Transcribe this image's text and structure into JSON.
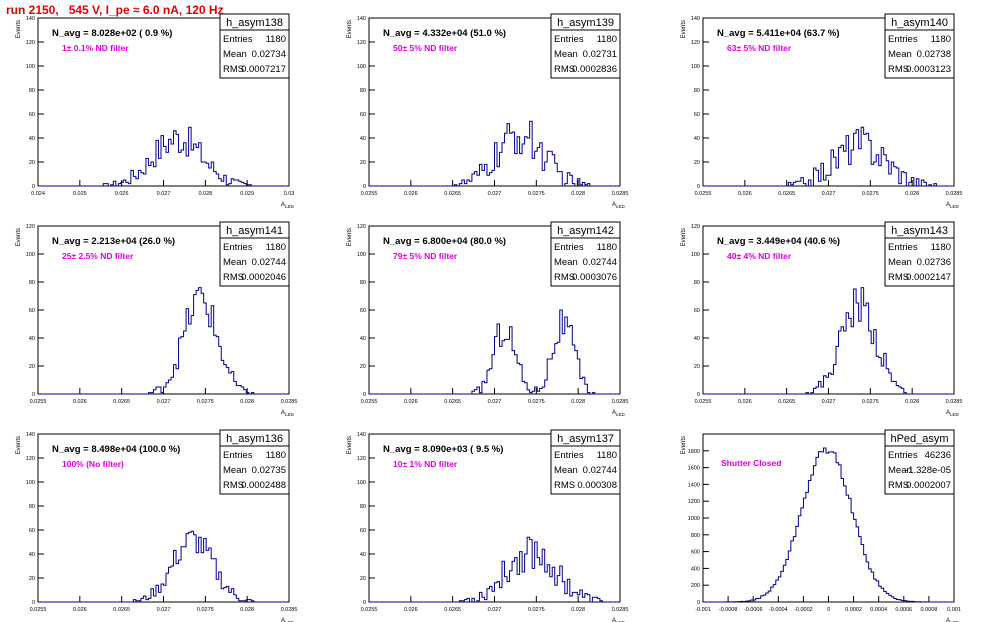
{
  "page_title": "run 2150,   545 V, I_pe ≈ 6.0 nA, 120 Hz",
  "axis_ylabel": "Events",
  "axis_xlabel": "A",
  "axis_xlabel_sub": "LED",
  "stats_labels": {
    "entries": "Entries",
    "mean": "Mean",
    "rms": "RMS"
  },
  "chart_data": [
    {
      "type": "bar",
      "name": "h_asym138",
      "navg": "N_avg = 8.028e+02 ( 0.9 %)",
      "filter": "1± 0.1% ND filter",
      "entries": "1180",
      "mean": "0.02734",
      "rms": "0.0007217",
      "xlim": [
        0.024,
        0.03
      ],
      "ylim": [
        0,
        140
      ],
      "xticks": [
        "0.024",
        "0.025",
        "0.026",
        "0.027",
        "0.028",
        "0.029",
        "0.03"
      ],
      "yticks": [
        "0",
        "20",
        "40",
        "60",
        "80",
        "100",
        "120",
        "140"
      ],
      "peaks": [
        {
          "mu": 0.02734,
          "sigma": 0.0006,
          "amp": 40
        }
      ],
      "noise": 7
    },
    {
      "type": "bar",
      "name": "h_asym139",
      "navg": "N_avg = 4.332e+04 (51.0 %)",
      "filter": "50± 5% ND filter",
      "entries": "1180",
      "mean": "0.02731",
      "rms": "0.0002836",
      "xlim": [
        0.0255,
        0.0285
      ],
      "ylim": [
        0,
        140
      ],
      "xticks": [
        "0.0255",
        "0.026",
        "0.0265",
        "0.027",
        "0.0275",
        "0.028",
        "0.0285"
      ],
      "yticks": [
        "0",
        "20",
        "40",
        "60",
        "80",
        "100",
        "120",
        "140"
      ],
      "peaks": [
        {
          "mu": 0.02731,
          "sigma": 0.00028,
          "amp": 42
        }
      ],
      "noise": 9
    },
    {
      "type": "bar",
      "name": "h_asym140",
      "navg": "N_avg = 5.411e+04 (63.7 %)",
      "filter": "63± 5% ND filter",
      "entries": "1180",
      "mean": "0.02738",
      "rms": "0.0003123",
      "xlim": [
        0.0255,
        0.0285
      ],
      "ylim": [
        0,
        140
      ],
      "xticks": [
        "0.0255",
        "0.026",
        "0.0265",
        "0.027",
        "0.0275",
        "0.028",
        "0.0285"
      ],
      "yticks": [
        "0",
        "20",
        "40",
        "60",
        "80",
        "100",
        "120",
        "140"
      ],
      "peaks": [
        {
          "mu": 0.02738,
          "sigma": 0.00031,
          "amp": 35
        }
      ],
      "noise": 8
    },
    {
      "type": "bar",
      "name": "h_asym141",
      "navg": "N_avg = 2.213e+04 (26.0 %)",
      "filter": "25± 2.5% ND filter",
      "entries": "1180",
      "mean": "0.02744",
      "rms": "0.0002046",
      "xlim": [
        0.0255,
        0.0285
      ],
      "ylim": [
        0,
        120
      ],
      "xticks": [
        "0.0255",
        "0.026",
        "0.0265",
        "0.027",
        "0.0275",
        "0.028",
        "0.0285"
      ],
      "yticks": [
        "0",
        "20",
        "40",
        "60",
        "80",
        "100",
        "120"
      ],
      "peaks": [
        {
          "mu": 0.02744,
          "sigma": 0.0002,
          "amp": 68
        }
      ],
      "noise": 7
    },
    {
      "type": "bar",
      "name": "h_asym142",
      "navg": "N_avg = 6.800e+04 (80.0 %)",
      "filter": "79± 5% ND filter",
      "entries": "1180",
      "mean": "0.02744",
      "rms": "0.0003076",
      "xlim": [
        0.0255,
        0.0285
      ],
      "ylim": [
        0,
        120
      ],
      "xticks": [
        "0.0255",
        "0.026",
        "0.0265",
        "0.027",
        "0.0275",
        "0.028",
        "0.0285"
      ],
      "yticks": [
        "0",
        "20",
        "40",
        "60",
        "80",
        "100",
        "120"
      ],
      "peaks": [
        {
          "mu": 0.02712,
          "sigma": 0.00013,
          "amp": 48
        },
        {
          "mu": 0.02782,
          "sigma": 0.00013,
          "amp": 50
        }
      ],
      "noise": 6
    },
    {
      "type": "bar",
      "name": "h_asym143",
      "navg": "N_avg = 3.449e+04 (40.6 %)",
      "filter": "40± 4% ND filter",
      "entries": "1180",
      "mean": "0.02736",
      "rms": "0.0002147",
      "xlim": [
        0.0255,
        0.0285
      ],
      "ylim": [
        0,
        120
      ],
      "xticks": [
        "0.0255",
        "0.026",
        "0.0265",
        "0.027",
        "0.0275",
        "0.028",
        "0.0285"
      ],
      "yticks": [
        "0",
        "20",
        "40",
        "60",
        "80",
        "100",
        "120"
      ],
      "peaks": [
        {
          "mu": 0.02736,
          "sigma": 0.00021,
          "amp": 65
        }
      ],
      "noise": 7
    },
    {
      "type": "bar",
      "name": "h_asym136",
      "navg": "N_avg = 8.498e+04 (100.0 %)",
      "filter": "100% (No filter)",
      "entries": "1180",
      "mean": "0.02735",
      "rms": "0.0002488",
      "xlim": [
        0.0255,
        0.0285
      ],
      "ylim": [
        0,
        140
      ],
      "xticks": [
        "0.0255",
        "0.026",
        "0.0265",
        "0.027",
        "0.0275",
        "0.028",
        "0.0285"
      ],
      "yticks": [
        "0",
        "20",
        "40",
        "60",
        "80",
        "100",
        "120",
        "140"
      ],
      "peaks": [
        {
          "mu": 0.02735,
          "sigma": 0.00024,
          "amp": 52
        }
      ],
      "noise": 6
    },
    {
      "type": "bar",
      "name": "h_asym137",
      "navg": "N_avg = 8.090e+03 ( 9.5 %)",
      "filter": "10± 1% ND filter",
      "entries": "1180",
      "mean": "0.02744",
      "rms": "0.000308",
      "xlim": [
        0.0255,
        0.0285
      ],
      "ylim": [
        0,
        140
      ],
      "xticks": [
        "0.0255",
        "0.026",
        "0.0265",
        "0.027",
        "0.0275",
        "0.028",
        "0.0285"
      ],
      "yticks": [
        "0",
        "20",
        "40",
        "60",
        "80",
        "100",
        "120",
        "140"
      ],
      "peaks": [
        {
          "mu": 0.02744,
          "sigma": 0.0003,
          "amp": 42
        }
      ],
      "noise": 8
    },
    {
      "type": "bar",
      "name": "hPed_asym",
      "navg": "",
      "filter": "Shutter Closed",
      "entries": "46236",
      "mean": "-1.328e-05",
      "rms": "0.0002007",
      "xlim": [
        -0.001,
        0.001
      ],
      "ylim": [
        0,
        2000
      ],
      "xticks": [
        "-0.001",
        "-0.0008",
        "-0.0006",
        "-0.0004",
        "-0.0002",
        "0",
        "0.0002",
        "0.0004",
        "0.0006",
        "0.0008",
        "0.001"
      ],
      "yticks": [
        "0",
        "200",
        "400",
        "600",
        "800",
        "1000",
        "1200",
        "1400",
        "1600",
        "1800"
      ],
      "peaks": [
        {
          "mu": -1.33e-05,
          "sigma": 0.0002,
          "amp": 1820
        }
      ],
      "noise": 25
    }
  ],
  "colors": {
    "title": "#e00000",
    "annotation": "#e000e0",
    "histogram": "#000088",
    "text": "#000000"
  }
}
